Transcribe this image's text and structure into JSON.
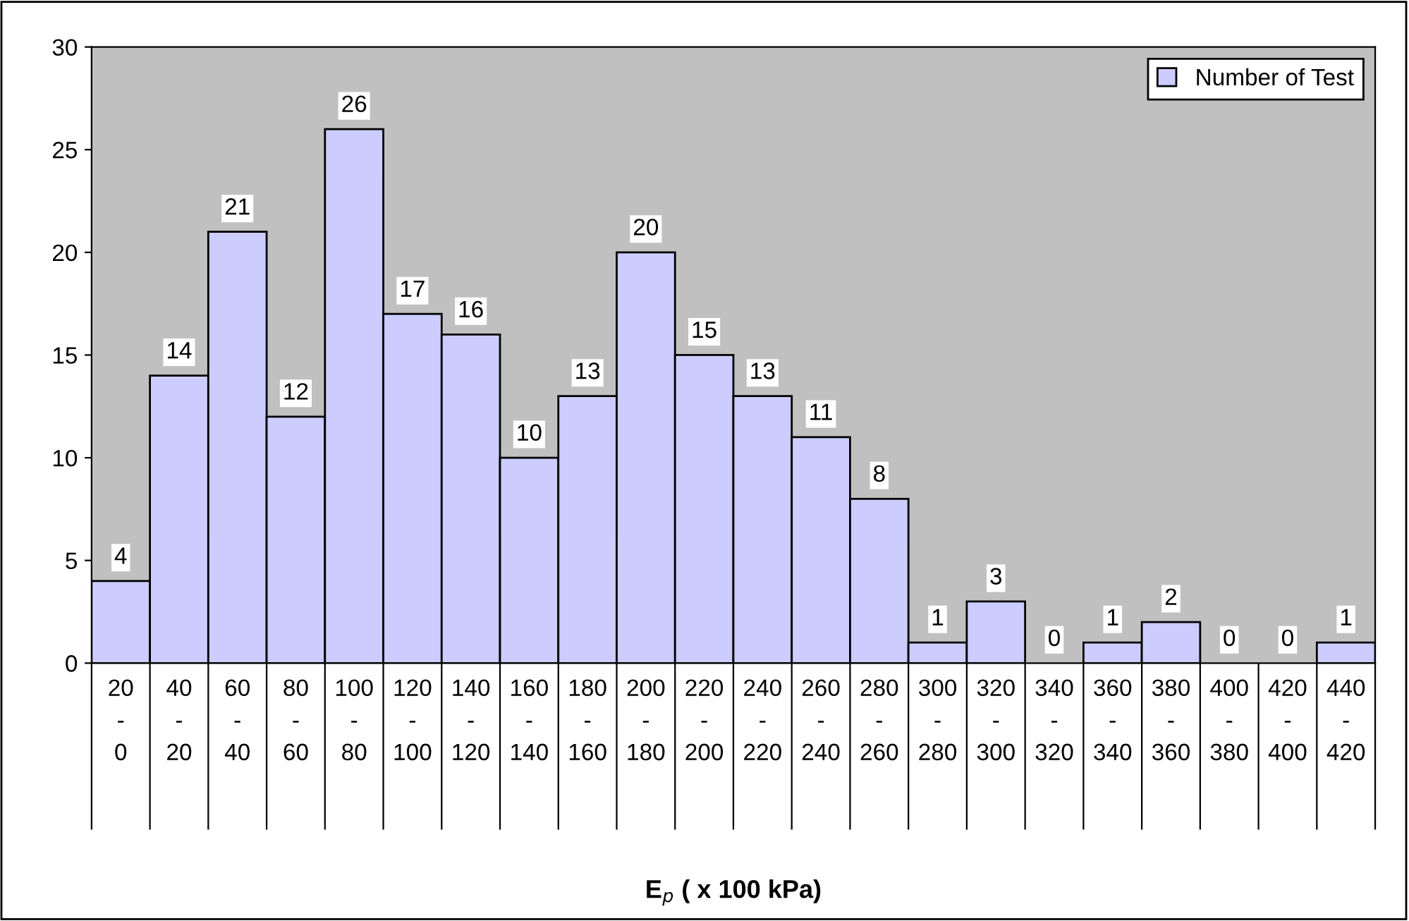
{
  "chart_data": {
    "type": "bar",
    "xlabel": "E$_{p}$ ( x 100 kPa)",
    "categories": [
      "20\n-\n0",
      "40\n-\n20",
      "60\n-\n40",
      "80\n-\n60",
      "100\n-\n80",
      "120\n-\n100",
      "140\n-\n120",
      "160\n-\n140",
      "180\n-\n160",
      "200\n-\n180",
      "220\n-\n200",
      "240\n-\n220",
      "260\n-\n240",
      "280\n-\n260",
      "300\n-\n280",
      "320\n-\n300",
      "340\n-\n320",
      "360\n-\n340",
      "380\n-\n360",
      "400\n-\n380",
      "420\n-\n400",
      "440\n-\n420"
    ],
    "series": [
      {
        "name": "Number of Test",
        "color": "#ccccff",
        "values": [
          4,
          14,
          21,
          12,
          26,
          17,
          16,
          10,
          13,
          20,
          15,
          13,
          11,
          8,
          1,
          3,
          0,
          1,
          2,
          0,
          0,
          1
        ]
      }
    ],
    "ylim": [
      0,
      30
    ],
    "yticks": [
      0,
      5,
      10,
      15,
      20,
      25,
      30
    ],
    "grid": false,
    "legend": "top right",
    "data_labels": true
  }
}
